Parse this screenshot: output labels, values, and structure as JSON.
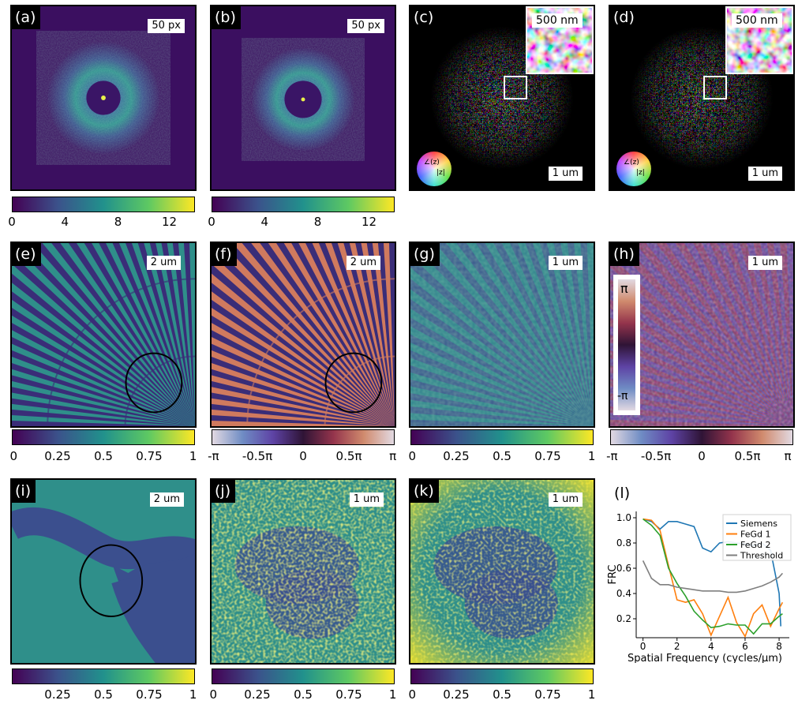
{
  "panels": {
    "a": {
      "label": "(a)",
      "scale": "50 px"
    },
    "b": {
      "label": "(b)",
      "scale": "50 px"
    },
    "c": {
      "label": "(c)",
      "scale": "1 um",
      "inset_scale": "500 nm"
    },
    "d": {
      "label": "(d)",
      "scale": "1 um",
      "inset_scale": "500 nm"
    },
    "e": {
      "label": "(e)",
      "scale": "2 um"
    },
    "f": {
      "label": "(f)",
      "scale": "2 um"
    },
    "g": {
      "label": "(g)",
      "scale": "1 um"
    },
    "h": {
      "label": "(h)",
      "scale": "1 um",
      "cbar_top": "π",
      "cbar_bottom": "-π"
    },
    "i": {
      "label": "(i)",
      "scale": "2 um"
    },
    "j": {
      "label": "(j)",
      "scale": "1 um"
    },
    "k": {
      "label": "(k)",
      "scale": "1 um"
    },
    "l": {
      "label": "(l)"
    }
  },
  "wheel": {
    "angle_label": "∠(z)",
    "abs_label": "|z|"
  },
  "colorbars": {
    "intensity_ticks": [
      "0",
      "4",
      "8",
      "12"
    ],
    "amplitude_ticks": [
      "0",
      "0.25",
      "0.5",
      "0.75",
      "1"
    ],
    "phase_ticks": [
      "-π",
      "-0.5π",
      "0",
      "0.5π",
      "π"
    ]
  },
  "colors": {
    "viridis_dark": "#440154",
    "viridis_mid": "#21918c",
    "viridis_light": "#fde725",
    "siemens": "#1f77b4",
    "fegd1": "#ff7f0e",
    "fegd2": "#2ca02c",
    "threshold": "#7f7f7f"
  },
  "chart_data": {
    "type": "line",
    "title": "",
    "xlabel": "Spatial Frequency (cycles/μm)",
    "ylabel": "FRC",
    "xlim": [
      -0.4,
      8.6
    ],
    "ylim": [
      0.05,
      1.05
    ],
    "xticks": [
      "0",
      "2",
      "4",
      "6",
      "8"
    ],
    "yticks": [
      "0.2",
      "0.4",
      "0.6",
      "0.8",
      "1.0"
    ],
    "legend_position": "top-right",
    "series": [
      {
        "name": "Siemens",
        "color": "#1f77b4",
        "x": [
          0,
          0.5,
          1.0,
          1.5,
          2.0,
          2.5,
          3.0,
          3.5,
          4.0,
          4.5,
          5.0,
          5.5,
          6.0,
          6.5,
          7.0,
          7.5,
          8.0,
          8.1
        ],
        "y": [
          0.99,
          0.97,
          0.91,
          0.97,
          0.97,
          0.95,
          0.93,
          0.76,
          0.73,
          0.8,
          0.81,
          0.8,
          0.79,
          0.78,
          0.8,
          0.74,
          0.4,
          0.14
        ]
      },
      {
        "name": "FeGd 1",
        "color": "#ff7f0e",
        "x": [
          0,
          0.5,
          1.0,
          1.5,
          2.0,
          2.5,
          3.0,
          3.5,
          4.0,
          4.5,
          5.0,
          5.5,
          6.0,
          6.5,
          7.0,
          7.5,
          8.0,
          8.2
        ],
        "y": [
          0.99,
          0.98,
          0.9,
          0.62,
          0.35,
          0.33,
          0.35,
          0.24,
          0.07,
          0.22,
          0.37,
          0.17,
          0.06,
          0.24,
          0.31,
          0.14,
          0.28,
          0.33
        ]
      },
      {
        "name": "FeGd 2",
        "color": "#2ca02c",
        "x": [
          0,
          0.5,
          1.0,
          1.5,
          2.0,
          2.5,
          3.0,
          3.5,
          4.0,
          4.5,
          5.0,
          5.5,
          6.0,
          6.5,
          7.0,
          7.5,
          8.0,
          8.2
        ],
        "y": [
          0.99,
          0.94,
          0.86,
          0.6,
          0.48,
          0.38,
          0.26,
          0.19,
          0.13,
          0.14,
          0.16,
          0.15,
          0.15,
          0.08,
          0.16,
          0.16,
          0.22,
          0.24
        ]
      },
      {
        "name": "Threshold",
        "color": "#7f7f7f",
        "x": [
          0,
          0.5,
          1.0,
          1.5,
          2.0,
          2.5,
          3.0,
          3.5,
          4.0,
          4.5,
          5.0,
          5.5,
          6.0,
          6.5,
          7.0,
          7.5,
          8.0,
          8.2
        ],
        "y": [
          0.66,
          0.52,
          0.47,
          0.47,
          0.45,
          0.44,
          0.43,
          0.42,
          0.42,
          0.42,
          0.41,
          0.41,
          0.42,
          0.44,
          0.46,
          0.49,
          0.53,
          0.56
        ]
      }
    ]
  }
}
